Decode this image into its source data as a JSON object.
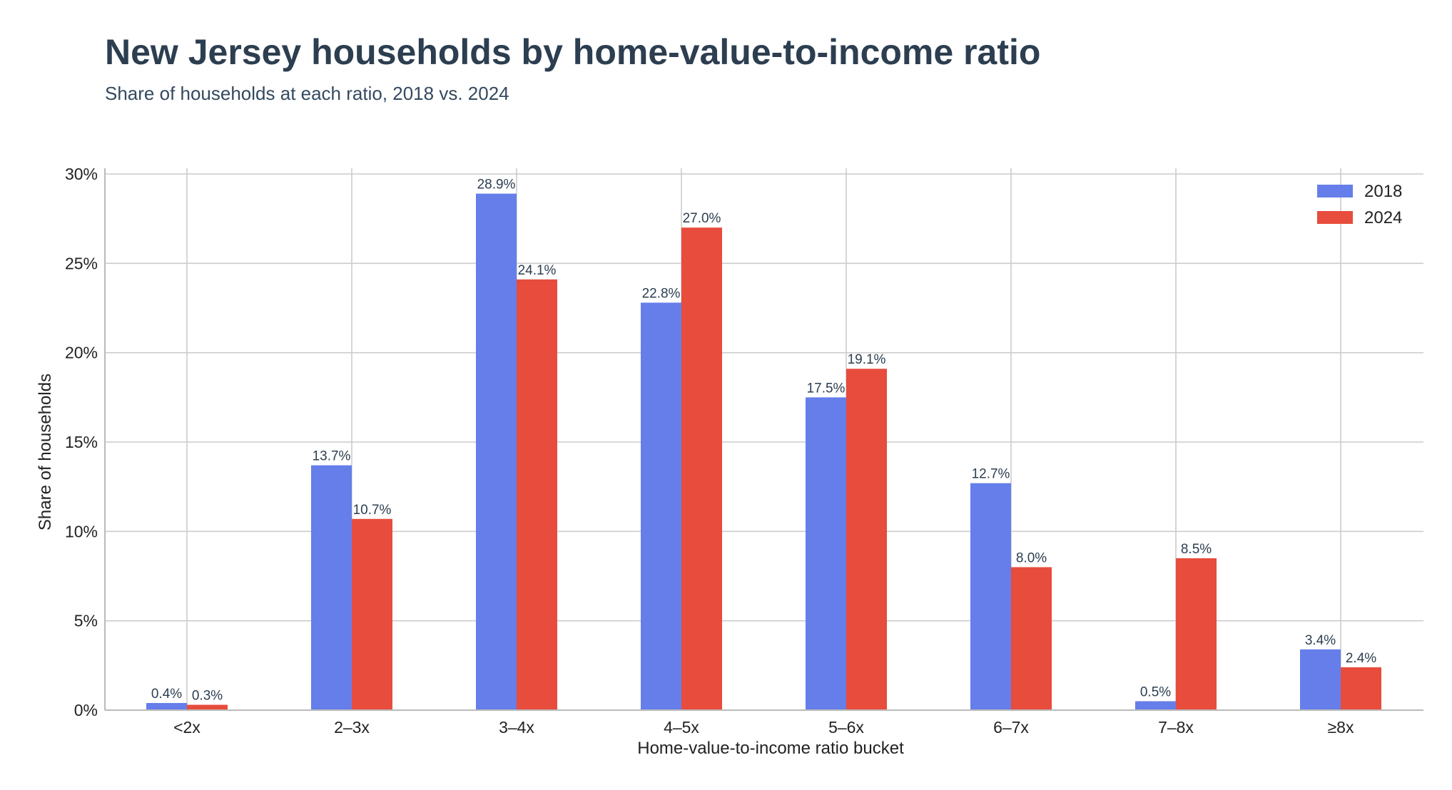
{
  "chart_data": {
    "type": "bar",
    "title": "New Jersey households by home-value-to-income ratio",
    "subtitle": "Share of households at each ratio, 2018 vs. 2024",
    "xlabel": "Home-value-to-income ratio bucket",
    "ylabel": "Share of households",
    "categories": [
      "<2x",
      "2–3x",
      "3–4x",
      "4–5x",
      "5–6x",
      "6–7x",
      "7–8x",
      "≥8x"
    ],
    "series": [
      {
        "name": "2018",
        "color": "#667eea",
        "values": [
          0.4,
          13.7,
          28.9,
          22.8,
          17.5,
          12.7,
          0.5,
          3.4
        ],
        "labels": [
          "0.4%",
          "13.7%",
          "28.9%",
          "22.8%",
          "17.5%",
          "12.7%",
          "0.5%",
          "3.4%"
        ]
      },
      {
        "name": "2024",
        "color": "#e74c3c",
        "values": [
          0.3,
          10.7,
          24.1,
          27.0,
          19.1,
          8.0,
          8.5,
          2.4
        ],
        "labels": [
          "0.3%",
          "10.7%",
          "24.1%",
          "27.0%",
          "19.1%",
          "8.0%",
          "8.5%",
          "2.4%"
        ]
      }
    ],
    "ylim": [
      0,
      30
    ],
    "yticks": [
      0,
      5,
      10,
      15,
      20,
      25,
      30
    ],
    "ytick_labels": [
      "0%",
      "5%",
      "10%",
      "15%",
      "20%",
      "25%",
      "30%"
    ],
    "grid": true,
    "legend_position": "top-right"
  }
}
